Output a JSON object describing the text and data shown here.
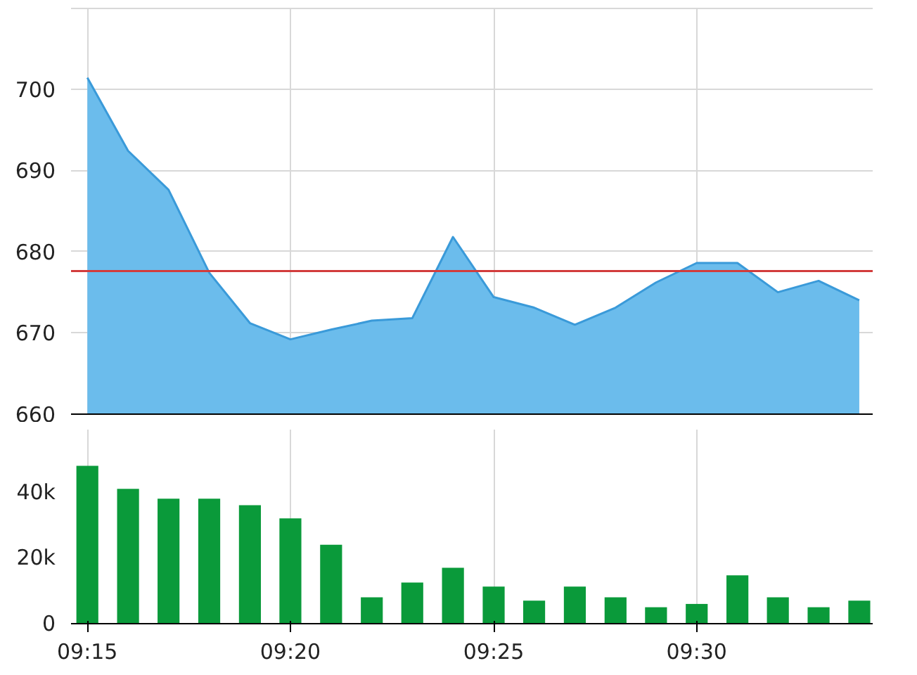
{
  "chart_data": [
    {
      "type": "area",
      "x": [
        9.25,
        9.2667,
        9.2833,
        9.3,
        9.3167,
        9.3333,
        9.35,
        9.3667,
        9.3833,
        9.4,
        9.4167,
        9.4333,
        9.45,
        9.4667,
        9.4833,
        9.5,
        9.5167,
        9.5333,
        9.55,
        9.5667
      ],
      "series": [
        {
          "color": "#6bbcec",
          "values": [
            701.4,
            692.4,
            687.6,
            677.4,
            671.2,
            669.2,
            670.4,
            671.5,
            671.8,
            681.8,
            674.4,
            673.1,
            671.0,
            673.1,
            676.2,
            678.6,
            678.6,
            675.0,
            676.4,
            674.0
          ]
        }
      ],
      "xlim": [
        9.2433,
        9.5722
      ],
      "xticks": [
        {
          "value": 9.25,
          "label": null
        },
        {
          "value": 9.3333,
          "label": null
        },
        {
          "value": 9.4167,
          "label": null
        },
        {
          "value": 9.5,
          "label": null
        }
      ],
      "ylim": [
        660,
        710
      ],
      "yticks": [
        660,
        670,
        680,
        690,
        700,
        {
          "value": 710,
          "label": null
        }
      ],
      "tick_labels": "y",
      "grid": true,
      "ref_lines": [
        {
          "axis": "y",
          "value": 677.6,
          "color": "#d23c3c"
        }
      ]
    },
    {
      "type": "bar",
      "x": [
        9.25,
        9.2667,
        9.2833,
        9.3,
        9.3167,
        9.3333,
        9.35,
        9.3667,
        9.3833,
        9.4,
        9.4167,
        9.4333,
        9.45,
        9.4667,
        9.4833,
        9.5,
        9.5167,
        9.5333,
        9.55,
        9.5667
      ],
      "series": [
        {
          "color": "#0a9a3a",
          "values": [
            48000,
            41000,
            38000,
            38000,
            36000,
            32000,
            24000,
            8000,
            12500,
            17000,
            11300,
            7000,
            11300,
            8000,
            5000,
            6000,
            14700,
            8000,
            5000,
            7000
          ]
        }
      ],
      "xlim": [
        9.2433,
        9.5722
      ],
      "xticks": [
        {
          "value": 9.25,
          "label": "09:15"
        },
        {
          "value": 9.3333,
          "label": "09:20"
        },
        {
          "value": 9.4167,
          "label": "09:25"
        },
        {
          "value": 9.5,
          "label": "09:30"
        }
      ],
      "ylim": [
        0,
        59000
      ],
      "yticks": [
        {
          "value": 0,
          "label": "0"
        },
        {
          "value": 20000,
          "label": "20k"
        },
        {
          "value": 40000,
          "label": "40k"
        }
      ],
      "grid": "x"
    }
  ]
}
